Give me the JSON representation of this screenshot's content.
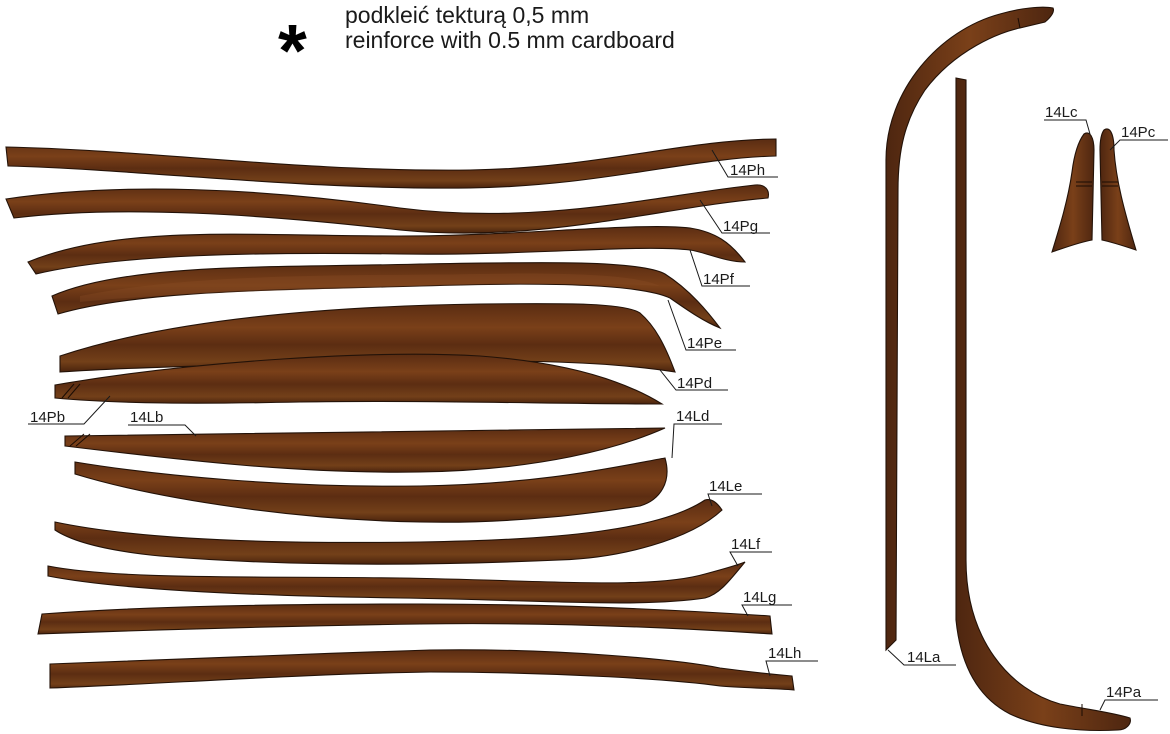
{
  "note": {
    "symbol": "*",
    "line_pl": "podkleić tekturą 0,5 mm",
    "line_en": "reinforce with 0.5 mm cardboard"
  },
  "colors": {
    "wood_dark": "#4e2610",
    "wood_mid": "#6e3818",
    "wood_light": "#8a4c24",
    "outline": "#231208"
  },
  "labels": {
    "p_h": "14Ph",
    "p_g": "14Pg",
    "p_f": "14Pf",
    "p_e": "14Pe",
    "p_d": "14Pd",
    "p_b": "14Pb",
    "l_b": "14Lb",
    "l_d": "14Ld",
    "l_e": "14Le",
    "l_f": "14Lf",
    "l_g": "14Lg",
    "l_h": "14Lh",
    "l_a": "14La",
    "p_a": "14Pa",
    "l_c": "14Lc",
    "p_c": "14Pc"
  }
}
